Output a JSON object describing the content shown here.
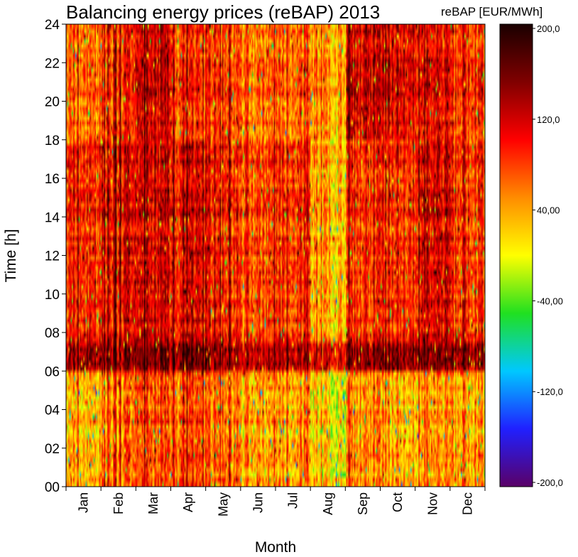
{
  "chart_data": {
    "type": "heatmap",
    "title": "Balancing energy prices (reBAP) 2013",
    "xlabel": "Month",
    "ylabel": "Time [h]",
    "x_categories": [
      "Jan",
      "Feb",
      "Mar",
      "Apr",
      "May",
      "Jun",
      "Jul",
      "Aug",
      "Sep",
      "Oct",
      "Nov",
      "Dec"
    ],
    "y_ticks": [
      "00",
      "02",
      "04",
      "06",
      "08",
      "10",
      "12",
      "14",
      "16",
      "18",
      "20",
      "22",
      "24"
    ],
    "ylim": [
      0,
      24
    ],
    "colorbar": {
      "label": "reBAP [EUR/MWh]",
      "ticks": [
        "200,0",
        "120,0",
        "40,00",
        "-40,00",
        "-120,0",
        "-200,0"
      ],
      "range": [
        -200,
        200
      ],
      "colors": [
        "#5a0066",
        "#2020ff",
        "#00c8ff",
        "#20e020",
        "#ffff00",
        "#ff8c00",
        "#ff0000",
        "#800000",
        "#1a0000"
      ]
    },
    "monthly_typical_price": [
      {
        "month": "Jan",
        "night": 30,
        "morning_peak": 130,
        "day": 90,
        "evening": 60
      },
      {
        "month": "Feb",
        "night": 50,
        "morning_peak": 130,
        "day": 100,
        "evening": 80
      },
      {
        "month": "Mar",
        "night": 70,
        "morning_peak": 140,
        "day": 110,
        "evening": 110
      },
      {
        "month": "Apr",
        "night": 60,
        "morning_peak": 140,
        "day": 95,
        "evening": 70
      },
      {
        "month": "May",
        "night": 50,
        "morning_peak": 120,
        "day": 85,
        "evening": 70
      },
      {
        "month": "Jun",
        "night": 30,
        "morning_peak": 110,
        "day": 70,
        "evening": 50
      },
      {
        "month": "Jul",
        "night": 40,
        "morning_peak": 120,
        "day": 85,
        "evening": 60
      },
      {
        "month": "Aug",
        "night": 10,
        "morning_peak": 100,
        "day": 30,
        "evening": 40
      },
      {
        "month": "Sep",
        "night": 40,
        "morning_peak": 130,
        "day": 80,
        "evening": 110
      },
      {
        "month": "Oct",
        "night": 35,
        "morning_peak": 140,
        "day": 90,
        "evening": 110
      },
      {
        "month": "Nov",
        "night": 40,
        "morning_peak": 140,
        "day": 110,
        "evening": 100
      },
      {
        "month": "Dec",
        "night": 35,
        "morning_peak": 130,
        "day": 80,
        "evening": 80
      }
    ]
  }
}
